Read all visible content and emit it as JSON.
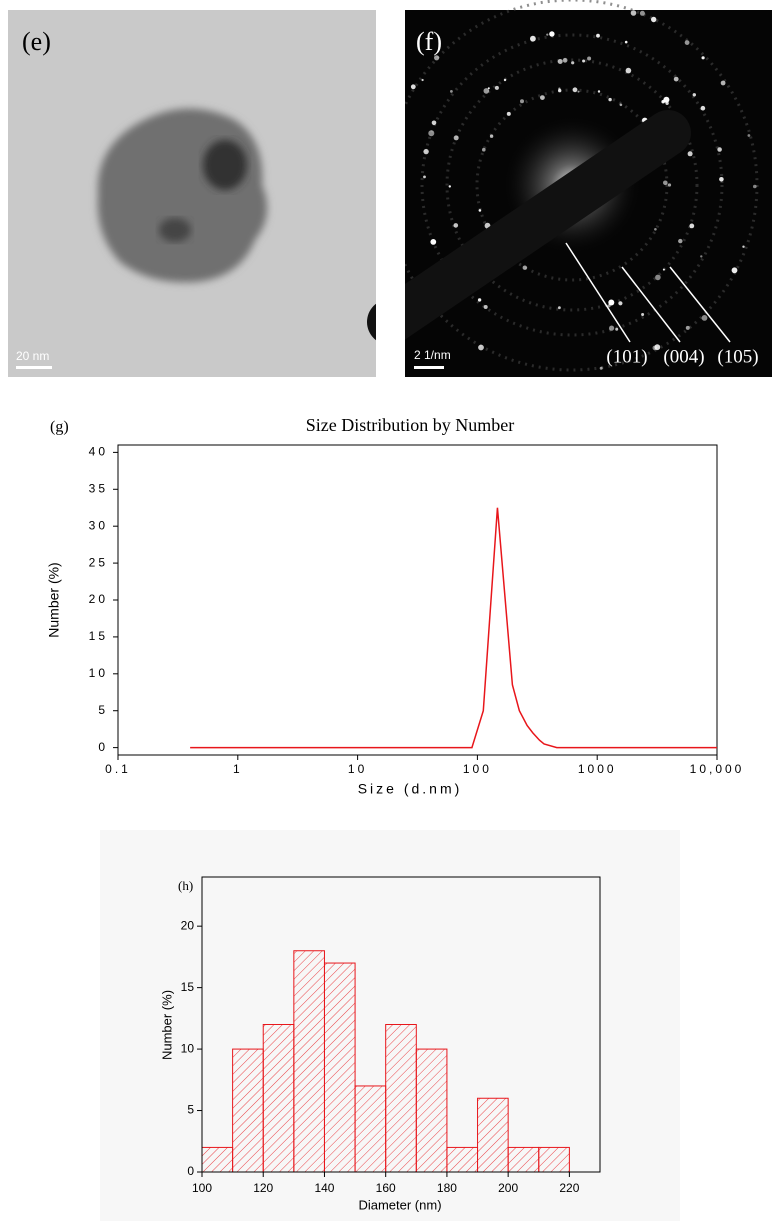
{
  "panels": [
    {
      "label": "(e)",
      "scale_bar": "20 nm"
    },
    {
      "label": "(f)",
      "scale_bar": "2 1/nm",
      "ring_labels": [
        "(101)",
        "(004)",
        "(105)"
      ]
    }
  ],
  "chart_data": [
    {
      "type": "line",
      "panel_label": "(g)",
      "title": "Size Distribution by Number",
      "x_label": "Size (d.nm)",
      "y_label": "Number (%)",
      "xscale": "log",
      "grid": false,
      "color": "#e8161b",
      "x": [
        0.4,
        1,
        10,
        90,
        112,
        147,
        196,
        224,
        260,
        290,
        330,
        360,
        460,
        1000,
        10000
      ],
      "values": [
        0,
        0,
        0,
        0,
        5,
        32.5,
        8.5,
        5,
        3,
        2,
        1,
        0.5,
        0,
        0,
        0
      ],
      "xlim": [
        0.1,
        10000
      ],
      "xticks": [
        0.1,
        1,
        10,
        100,
        1000,
        {
          "value": 10000,
          "label": "10,000"
        }
      ],
      "ylim": [
        -1,
        41
      ],
      "yticks": [
        0,
        5,
        10,
        15,
        20,
        25,
        30,
        35,
        40
      ]
    },
    {
      "type": "histogram",
      "panel_label": "(h)",
      "x_label": "Diameter (nm)",
      "y_label": "Number (%)",
      "grid": false,
      "color": "#e8161b",
      "bins": [
        100,
        110,
        120,
        130,
        140,
        150,
        160,
        170,
        180,
        190,
        200,
        210,
        220
      ],
      "values": [
        2,
        10,
        12,
        18,
        17,
        7,
        12,
        10,
        2,
        6,
        2,
        2
      ],
      "xlim": [
        100,
        230
      ],
      "xticks": [
        100,
        120,
        140,
        160,
        180,
        200,
        220
      ],
      "ylim": [
        0,
        24
      ],
      "yticks": [
        0,
        5,
        10,
        15,
        20
      ]
    }
  ]
}
